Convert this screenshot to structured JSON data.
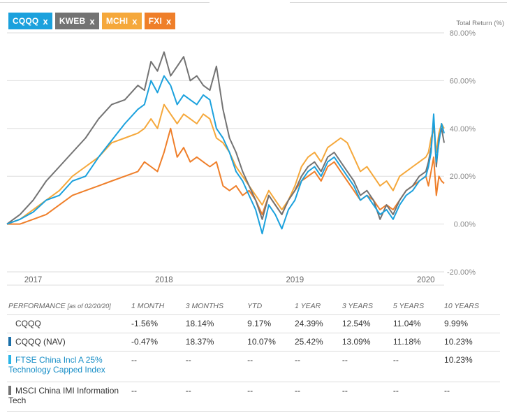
{
  "legend": [
    {
      "label": "CQQQ",
      "close": "x",
      "color": "#1ba1dd"
    },
    {
      "label": "KWEB",
      "close": "x",
      "color": "#737373"
    },
    {
      "label": "MCHI",
      "close": "x",
      "color": "#f5a83b"
    },
    {
      "label": "FXI",
      "close": "x",
      "color": "#ef7f2a"
    }
  ],
  "chart_data": {
    "type": "line",
    "title": "",
    "ylabel": "Total Return (%)",
    "ylim": [
      -20,
      80
    ],
    "y_ticks": [
      80,
      60,
      40,
      20,
      0,
      -20
    ],
    "y_tick_labels": [
      "80.00%",
      "60.00%",
      "40.00%",
      "20.00%",
      "0.00%",
      "-20.00%"
    ],
    "x_tick_labels": [
      "2017",
      "2018",
      "2019",
      "2020"
    ],
    "x_tick_values": [
      2017.0,
      2018.0,
      2019.0,
      2020.0
    ],
    "xlim": [
      2016.8,
      2020.14
    ],
    "grid": true,
    "series": [
      {
        "name": "CQQQ",
        "color": "#1ba1dd",
        "x": [
          2016.8,
          2016.9,
          2017.0,
          2017.1,
          2017.2,
          2017.3,
          2017.4,
          2017.5,
          2017.6,
          2017.7,
          2017.8,
          2017.85,
          2017.9,
          2017.95,
          2018.0,
          2018.05,
          2018.1,
          2018.15,
          2018.2,
          2018.25,
          2018.3,
          2018.35,
          2018.4,
          2018.45,
          2018.5,
          2018.55,
          2018.6,
          2018.65,
          2018.7,
          2018.75,
          2018.8,
          2018.85,
          2018.9,
          2018.95,
          2019.0,
          2019.05,
          2019.1,
          2019.15,
          2019.2,
          2019.25,
          2019.3,
          2019.35,
          2019.4,
          2019.45,
          2019.5,
          2019.55,
          2019.6,
          2019.65,
          2019.7,
          2019.75,
          2019.8,
          2019.85,
          2019.9,
          2019.95,
          2020.0,
          2020.02,
          2020.04,
          2020.06,
          2020.08,
          2020.1,
          2020.12,
          2020.14
        ],
        "y": [
          0,
          2,
          5,
          10,
          12,
          18,
          20,
          28,
          35,
          42,
          48,
          50,
          60,
          55,
          62,
          58,
          50,
          54,
          52,
          50,
          54,
          52,
          40,
          36,
          30,
          22,
          18,
          12,
          6,
          -4,
          8,
          4,
          -2,
          6,
          10,
          18,
          22,
          24,
          20,
          26,
          28,
          24,
          20,
          16,
          10,
          12,
          8,
          4,
          6,
          2,
          8,
          12,
          14,
          18,
          20,
          24,
          30,
          46,
          26,
          34,
          42,
          38
        ]
      },
      {
        "name": "KWEB",
        "color": "#737373",
        "x": [
          2016.8,
          2016.9,
          2017.0,
          2017.1,
          2017.2,
          2017.3,
          2017.4,
          2017.5,
          2017.6,
          2017.7,
          2017.8,
          2017.85,
          2017.9,
          2017.95,
          2018.0,
          2018.05,
          2018.1,
          2018.15,
          2018.2,
          2018.25,
          2018.3,
          2018.35,
          2018.4,
          2018.45,
          2018.5,
          2018.55,
          2018.6,
          2018.65,
          2018.7,
          2018.75,
          2018.8,
          2018.85,
          2018.9,
          2018.95,
          2019.0,
          2019.05,
          2019.1,
          2019.15,
          2019.2,
          2019.25,
          2019.3,
          2019.35,
          2019.4,
          2019.45,
          2019.5,
          2019.55,
          2019.6,
          2019.65,
          2019.7,
          2019.75,
          2019.8,
          2019.85,
          2019.9,
          2019.95,
          2020.0,
          2020.02,
          2020.04,
          2020.06,
          2020.08,
          2020.1,
          2020.12,
          2020.14
        ],
        "y": [
          0,
          4,
          10,
          18,
          24,
          30,
          36,
          44,
          50,
          52,
          58,
          56,
          68,
          64,
          72,
          62,
          66,
          70,
          60,
          62,
          58,
          56,
          66,
          48,
          36,
          30,
          22,
          16,
          10,
          2,
          12,
          8,
          4,
          10,
          14,
          20,
          24,
          26,
          22,
          28,
          30,
          26,
          22,
          18,
          12,
          14,
          10,
          2,
          8,
          4,
          10,
          14,
          16,
          20,
          22,
          26,
          32,
          44,
          24,
          36,
          40,
          34
        ]
      },
      {
        "name": "MCHI",
        "color": "#f5a83b",
        "x": [
          2016.8,
          2016.9,
          2017.0,
          2017.1,
          2017.2,
          2017.3,
          2017.4,
          2017.5,
          2017.6,
          2017.7,
          2017.8,
          2017.85,
          2017.9,
          2017.95,
          2018.0,
          2018.05,
          2018.1,
          2018.15,
          2018.2,
          2018.25,
          2018.3,
          2018.35,
          2018.4,
          2018.45,
          2018.5,
          2018.55,
          2018.6,
          2018.65,
          2018.7,
          2018.75,
          2018.8,
          2018.85,
          2018.9,
          2018.95,
          2019.0,
          2019.05,
          2019.1,
          2019.15,
          2019.2,
          2019.25,
          2019.3,
          2019.35,
          2019.4,
          2019.45,
          2019.5,
          2019.55,
          2019.6,
          2019.65,
          2019.7,
          2019.75,
          2019.8,
          2019.85,
          2019.9,
          2019.95,
          2020.0,
          2020.02,
          2020.04,
          2020.06,
          2020.08,
          2020.1,
          2020.12,
          2020.14
        ],
        "y": [
          0,
          2,
          6,
          10,
          14,
          20,
          24,
          28,
          34,
          36,
          38,
          40,
          44,
          40,
          50,
          46,
          42,
          46,
          44,
          42,
          46,
          44,
          36,
          34,
          30,
          24,
          20,
          16,
          12,
          8,
          14,
          10,
          6,
          10,
          16,
          24,
          28,
          30,
          26,
          32,
          34,
          36,
          34,
          28,
          22,
          24,
          20,
          16,
          18,
          14,
          20,
          22,
          24,
          26,
          28,
          30,
          36,
          40,
          30,
          38,
          42,
          40
        ]
      },
      {
        "name": "FXI",
        "color": "#ef7f2a",
        "x": [
          2016.8,
          2016.9,
          2017.0,
          2017.1,
          2017.2,
          2017.3,
          2017.4,
          2017.5,
          2017.6,
          2017.7,
          2017.8,
          2017.85,
          2017.9,
          2017.95,
          2018.0,
          2018.05,
          2018.1,
          2018.15,
          2018.2,
          2018.25,
          2018.3,
          2018.35,
          2018.4,
          2018.45,
          2018.5,
          2018.55,
          2018.6,
          2018.65,
          2018.7,
          2018.75,
          2018.8,
          2018.85,
          2018.9,
          2018.95,
          2019.0,
          2019.05,
          2019.1,
          2019.15,
          2019.2,
          2019.25,
          2019.3,
          2019.35,
          2019.4,
          2019.45,
          2019.5,
          2019.55,
          2019.6,
          2019.65,
          2019.7,
          2019.75,
          2019.8,
          2019.85,
          2019.9,
          2019.95,
          2020.0,
          2020.02,
          2020.04,
          2020.06,
          2020.08,
          2020.1,
          2020.12,
          2020.14
        ],
        "y": [
          0,
          0,
          2,
          4,
          8,
          12,
          14,
          16,
          18,
          20,
          22,
          26,
          24,
          22,
          30,
          40,
          28,
          32,
          26,
          28,
          26,
          24,
          26,
          16,
          14,
          16,
          12,
          14,
          10,
          4,
          12,
          8,
          4,
          10,
          14,
          18,
          20,
          22,
          18,
          24,
          26,
          22,
          18,
          14,
          10,
          12,
          10,
          6,
          8,
          6,
          10,
          14,
          16,
          18,
          20,
          16,
          22,
          28,
          12,
          20,
          18,
          17
        ]
      }
    ]
  },
  "table": {
    "header": {
      "label": "PERFORMANCE",
      "asof": "[as of 02/20/20]",
      "columns": [
        "1 MONTH",
        "3 MONTHS",
        "YTD",
        "1 YEAR",
        "3 YEARS",
        "5 YEARS",
        "10 YEARS"
      ]
    },
    "rows": [
      {
        "name": "CQQQ",
        "swatch": "",
        "values": [
          "-1.56%",
          "18.14%",
          "9.17%",
          "24.39%",
          "12.54%",
          "11.04%",
          "9.99%"
        ]
      },
      {
        "name": "CQQQ (NAV)",
        "swatch": "#1a6fa8",
        "values": [
          "-0.47%",
          "18.37%",
          "10.07%",
          "25.42%",
          "13.09%",
          "11.18%",
          "10.23%"
        ]
      },
      {
        "name": "FTSE China Incl A 25% Technology Capped Index",
        "swatch": "#29b5e8",
        "values": [
          "--",
          "--",
          "--",
          "--",
          "--",
          "--",
          "10.23%"
        ]
      },
      {
        "name": "MSCI China IMI Information Tech",
        "swatch": "#737373",
        "values": [
          "--",
          "--",
          "--",
          "--",
          "--",
          "--",
          "--"
        ]
      }
    ]
  }
}
